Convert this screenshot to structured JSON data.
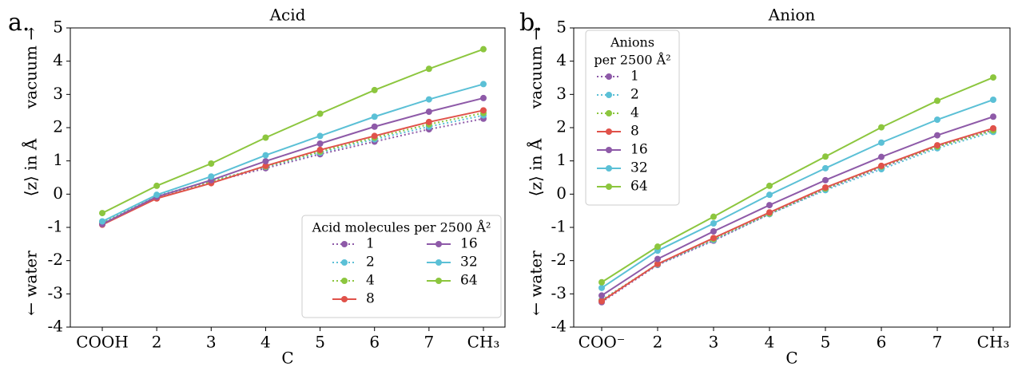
{
  "chart_data": [
    {
      "type": "line",
      "panel_label": "a.",
      "title": "Acid",
      "x_label": "C",
      "y_label": "⟨z⟩ in Å",
      "annotations": [
        "vacuum →",
        "← water"
      ],
      "categories": [
        "COOH",
        "2",
        "3",
        "4",
        "5",
        "6",
        "7",
        "CH₃"
      ],
      "ylim": [
        -4,
        5
      ],
      "yticks": [
        -4,
        -3,
        -2,
        -1,
        0,
        1,
        2,
        3,
        4,
        5
      ],
      "legend_title": [
        "Acid molecules per 2500 Å²"
      ],
      "legend_corner": "lower right",
      "legend_columns": 2,
      "series": [
        {
          "name": "1",
          "color": "#8e5aa8",
          "linestyle": "dotted",
          "values": [
            -0.88,
            -0.1,
            0.36,
            0.78,
            1.2,
            1.58,
            1.95,
            2.27
          ]
        },
        {
          "name": "2",
          "color": "#5bc0d6",
          "linestyle": "dotted",
          "values": [
            -0.84,
            -0.05,
            0.4,
            0.82,
            1.25,
            1.65,
            2.03,
            2.37
          ]
        },
        {
          "name": "4",
          "color": "#8cc63e",
          "linestyle": "dotted",
          "values": [
            -0.88,
            -0.08,
            0.38,
            0.83,
            1.28,
            1.7,
            2.1,
            2.44
          ]
        },
        {
          "name": "8",
          "color": "#e0524a",
          "linestyle": "solid",
          "values": [
            -0.92,
            -0.13,
            0.33,
            0.85,
            1.33,
            1.75,
            2.17,
            2.52
          ]
        },
        {
          "name": "16",
          "color": "#8e5aa8",
          "linestyle": "solid",
          "values": [
            -0.9,
            -0.08,
            0.42,
            0.99,
            1.52,
            2.03,
            2.48,
            2.89
          ]
        },
        {
          "name": "32",
          "color": "#5bc0d6",
          "linestyle": "solid",
          "values": [
            -0.82,
            -0.02,
            0.53,
            1.17,
            1.75,
            2.33,
            2.85,
            3.31
          ]
        },
        {
          "name": "64",
          "color": "#8cc63e",
          "linestyle": "solid",
          "values": [
            -0.57,
            0.25,
            0.92,
            1.7,
            2.42,
            3.13,
            3.77,
            4.36
          ]
        }
      ]
    },
    {
      "type": "line",
      "panel_label": "b.",
      "title": "Anion",
      "x_label": "C",
      "y_label": "⟨z⟩ in Å",
      "annotations": [
        "vacuum →",
        "← water"
      ],
      "categories": [
        "COO⁻",
        "2",
        "3",
        "4",
        "5",
        "6",
        "7",
        "CH₃"
      ],
      "ylim": [
        -4,
        5
      ],
      "yticks": [
        -4,
        -3,
        -2,
        -1,
        0,
        1,
        2,
        3,
        4,
        5
      ],
      "legend_title": [
        "Anions",
        "per 2500 Å²"
      ],
      "legend_corner": "upper left",
      "legend_columns": 1,
      "series": [
        {
          "name": "1",
          "color": "#8e5aa8",
          "linestyle": "dotted",
          "values": [
            -3.25,
            -2.13,
            -1.4,
            -0.6,
            0.15,
            0.8,
            1.43,
            1.93
          ]
        },
        {
          "name": "2",
          "color": "#5bc0d6",
          "linestyle": "dotted",
          "values": [
            -3.18,
            -2.12,
            -1.38,
            -0.6,
            0.12,
            0.75,
            1.38,
            1.87
          ]
        },
        {
          "name": "4",
          "color": "#8cc63e",
          "linestyle": "dotted",
          "values": [
            -3.2,
            -2.1,
            -1.35,
            -0.58,
            0.17,
            0.83,
            1.43,
            1.92
          ]
        },
        {
          "name": "8",
          "color": "#e0524a",
          "linestyle": "solid",
          "values": [
            -3.22,
            -2.1,
            -1.32,
            -0.55,
            0.2,
            0.85,
            1.47,
            1.98
          ]
        },
        {
          "name": "16",
          "color": "#8e5aa8",
          "linestyle": "solid",
          "values": [
            -3.05,
            -1.95,
            -1.12,
            -0.33,
            0.42,
            1.12,
            1.77,
            2.33
          ]
        },
        {
          "name": "32",
          "color": "#5bc0d6",
          "linestyle": "solid",
          "values": [
            -2.82,
            -1.7,
            -0.88,
            -0.02,
            0.78,
            1.55,
            2.24,
            2.84
          ]
        },
        {
          "name": "64",
          "color": "#8cc63e",
          "linestyle": "solid",
          "values": [
            -2.65,
            -1.58,
            -0.68,
            0.25,
            1.13,
            2.01,
            2.81,
            3.51
          ]
        }
      ]
    }
  ]
}
